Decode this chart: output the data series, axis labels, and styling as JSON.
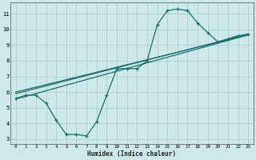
{
  "title": "",
  "xlabel": "Humidex (Indice chaleur)",
  "ylabel": "",
  "bg_color": "#cce8e8",
  "grid_color": "#aacccc",
  "line_color": "#1a7070",
  "xlim": [
    -0.5,
    23.5
  ],
  "ylim": [
    2.7,
    11.7
  ],
  "xticks": [
    0,
    1,
    2,
    3,
    4,
    5,
    6,
    7,
    8,
    9,
    10,
    11,
    12,
    13,
    14,
    15,
    16,
    17,
    18,
    19,
    20,
    21,
    22,
    23
  ],
  "yticks": [
    3,
    4,
    5,
    6,
    7,
    8,
    9,
    10,
    11
  ],
  "curve_x": [
    0,
    1,
    2,
    3,
    4,
    5,
    6,
    7,
    8,
    9,
    10,
    11,
    12,
    13,
    14,
    15,
    16,
    17,
    18,
    19,
    20,
    21,
    22,
    23
  ],
  "curve_y": [
    5.6,
    5.8,
    5.8,
    5.3,
    4.2,
    3.3,
    3.3,
    3.2,
    4.1,
    5.8,
    7.5,
    7.5,
    7.5,
    8.0,
    10.3,
    11.2,
    11.3,
    11.2,
    10.4,
    9.8,
    9.2,
    9.4,
    9.6,
    9.7
  ],
  "line1_x": [
    0,
    23
  ],
  "line1_y": [
    5.55,
    9.65
  ],
  "line2_x": [
    0,
    23
  ],
  "line2_y": [
    5.9,
    9.7
  ],
  "line3_x": [
    0,
    23
  ],
  "line3_y": [
    6.0,
    9.65
  ]
}
